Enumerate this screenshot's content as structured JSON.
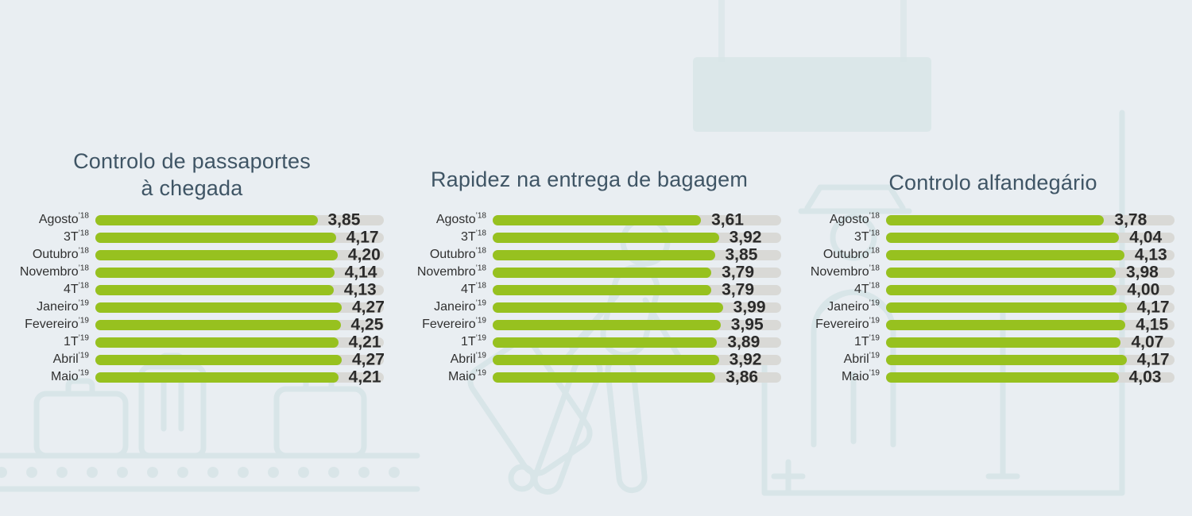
{
  "page": {
    "background_color": "#e9eef2",
    "decoration_color": "#d8e5e8",
    "bar_color": "#97c11f",
    "track_color": "#d9d9d6",
    "title_color": "#3f5565",
    "label_color": "#303030",
    "value_color": "#2b2b2b"
  },
  "illustrations": [
    {
      "name": "hanging-sign"
    },
    {
      "name": "baggage-carousel"
    },
    {
      "name": "traveler-with-suitcase"
    },
    {
      "name": "customs-building"
    }
  ],
  "chart_data": [
    {
      "type": "bar",
      "orientation": "horizontal",
      "title": "Controlo de passaportes\nà chegada",
      "xlim": [
        0,
        5
      ],
      "grid": false,
      "legend": false,
      "categories": [
        {
          "name": "Agosto",
          "year": "’18"
        },
        {
          "name": "3T",
          "year": "’18"
        },
        {
          "name": "Outubro",
          "year": "’18"
        },
        {
          "name": "Novembro",
          "year": "’18"
        },
        {
          "name": "4T",
          "year": "’18"
        },
        {
          "name": "Janeiro",
          "year": "’19"
        },
        {
          "name": "Fevereiro",
          "year": "’19"
        },
        {
          "name": "1T",
          "year": "’19"
        },
        {
          "name": "Abril",
          "year": "’19"
        },
        {
          "name": "Maio",
          "year": "’19"
        }
      ],
      "values": [
        3.85,
        4.17,
        4.2,
        4.14,
        4.13,
        4.27,
        4.25,
        4.21,
        4.27,
        4.21
      ],
      "value_labels": [
        "3,85",
        "4,17",
        "4,20",
        "4,14",
        "4,13",
        "4,27",
        "4,25",
        "4,21",
        "4,27",
        "4,21"
      ]
    },
    {
      "type": "bar",
      "orientation": "horizontal",
      "title": "Rapidez na entrega de bagagem",
      "xlim": [
        0,
        5
      ],
      "grid": false,
      "legend": false,
      "categories": [
        {
          "name": "Agosto",
          "year": "’18"
        },
        {
          "name": "3T",
          "year": "’18"
        },
        {
          "name": "Outubro",
          "year": "’18"
        },
        {
          "name": "Novembro",
          "year": "’18"
        },
        {
          "name": "4T",
          "year": "’18"
        },
        {
          "name": "Janeiro",
          "year": "’19"
        },
        {
          "name": "Fevereiro",
          "year": "’19"
        },
        {
          "name": "1T",
          "year": "’19"
        },
        {
          "name": "Abril",
          "year": "’19"
        },
        {
          "name": "Maio",
          "year": "’19"
        }
      ],
      "values": [
        3.61,
        3.92,
        3.85,
        3.79,
        3.79,
        3.99,
        3.95,
        3.89,
        3.92,
        3.86
      ],
      "value_labels": [
        "3,61",
        "3,92",
        "3,85",
        "3,79",
        "3,79",
        "3,99",
        "3,95",
        "3,89",
        "3,92",
        "3,86"
      ]
    },
    {
      "type": "bar",
      "orientation": "horizontal",
      "title": "Controlo alfandegário",
      "xlim": [
        0,
        5
      ],
      "grid": false,
      "legend": false,
      "categories": [
        {
          "name": "Agosto",
          "year": "’18"
        },
        {
          "name": "3T",
          "year": "’18"
        },
        {
          "name": "Outubro",
          "year": "’18"
        },
        {
          "name": "Novembro",
          "year": "’18"
        },
        {
          "name": "4T",
          "year": "’18"
        },
        {
          "name": "Janeiro",
          "year": "’19"
        },
        {
          "name": "Fevereiro",
          "year": "’19"
        },
        {
          "name": "1T",
          "year": "’19"
        },
        {
          "name": "Abril",
          "year": "’19"
        },
        {
          "name": "Maio",
          "year": "’19"
        }
      ],
      "values": [
        3.78,
        4.04,
        4.13,
        3.98,
        4.0,
        4.17,
        4.15,
        4.07,
        4.17,
        4.03
      ],
      "value_labels": [
        "3,78",
        "4,04",
        "4,13",
        "3,98",
        "4,00",
        "4,17",
        "4,15",
        "4,07",
        "4,17",
        "4,03"
      ]
    }
  ]
}
